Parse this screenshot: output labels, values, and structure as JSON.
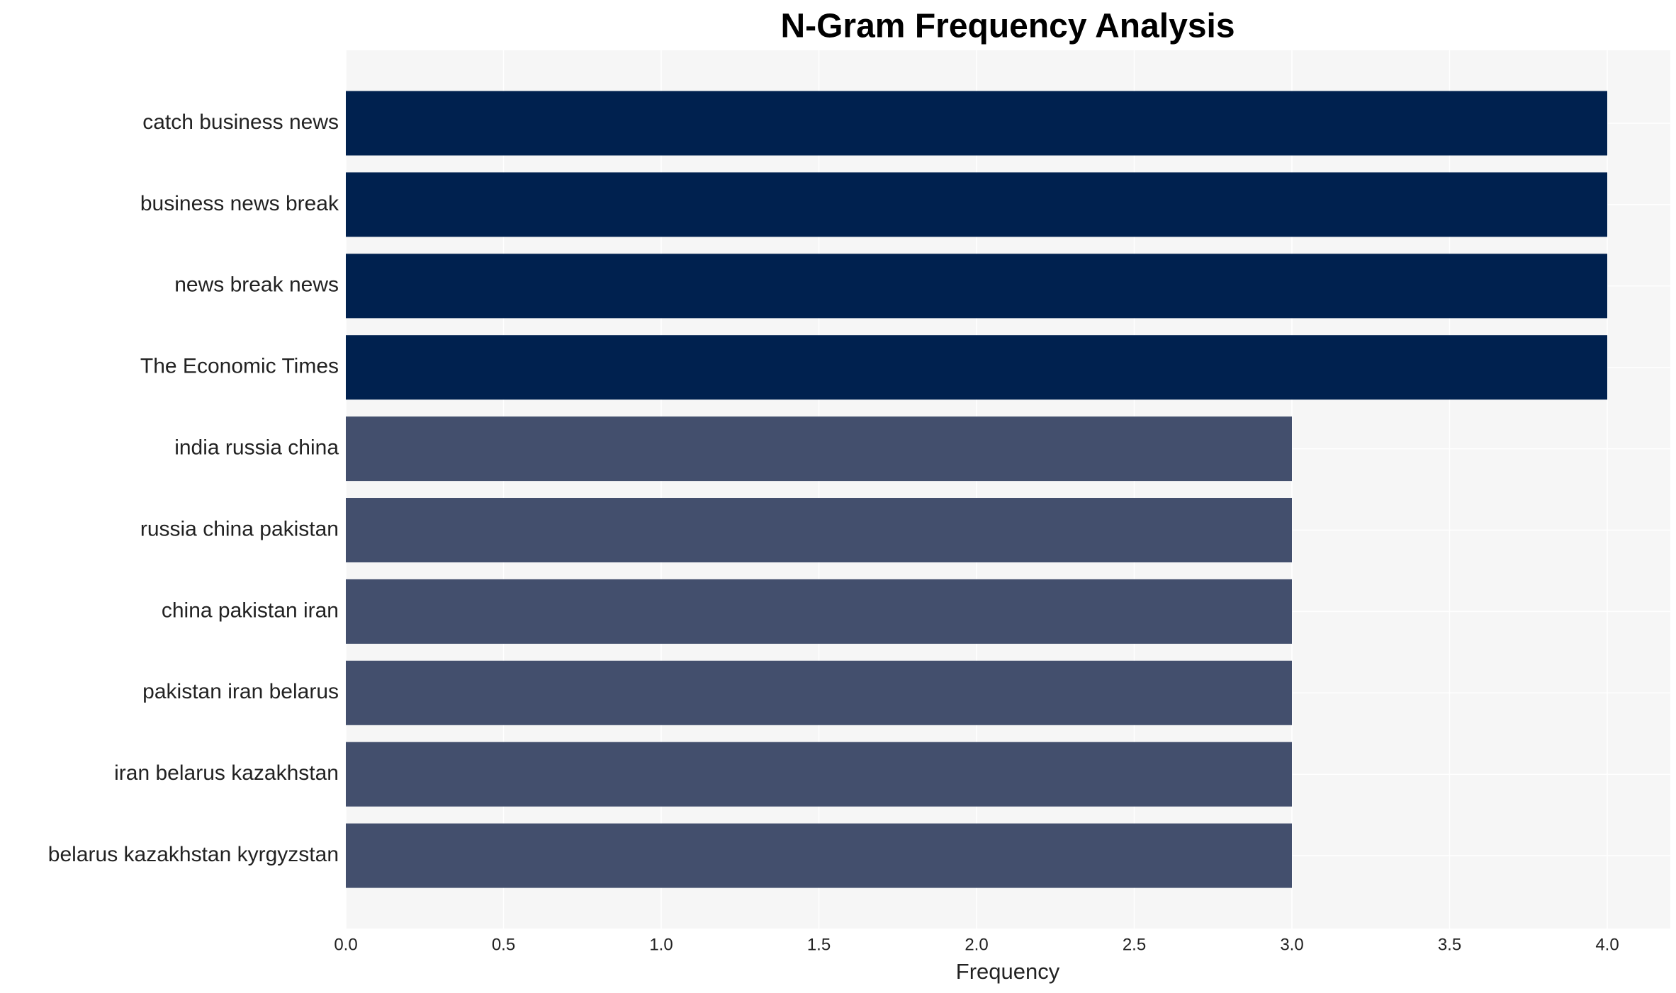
{
  "chart_data": {
    "type": "barh",
    "title": "N-Gram Frequency Analysis",
    "x_label": "Frequency",
    "categories": [
      "catch business news",
      "business news break",
      "news break news",
      "The Economic Times",
      "india russia china",
      "russia china pakistan",
      "china pakistan iran",
      "pakistan iran belarus",
      "iran belarus kazakhstan",
      "belarus kazakhstan kyrgyzstan"
    ],
    "values": [
      4,
      4,
      4,
      4,
      3,
      3,
      3,
      3,
      3,
      3
    ],
    "colors": [
      "#00214f",
      "#00214f",
      "#00214f",
      "#00214f",
      "#434f6d",
      "#434f6d",
      "#434f6d",
      "#434f6d",
      "#434f6d",
      "#434f6d"
    ],
    "xlim": [
      0,
      4.2
    ],
    "xticks": [
      {
        "value": 0,
        "label": "0.0"
      },
      {
        "value": 0.5,
        "label": "0.5"
      },
      {
        "value": 1,
        "label": "1.0"
      },
      {
        "value": 1.5,
        "label": "1.5"
      },
      {
        "value": 2,
        "label": "2.0"
      },
      {
        "value": 2.5,
        "label": "2.5"
      },
      {
        "value": 3,
        "label": "3.0"
      },
      {
        "value": 3.5,
        "label": "3.5"
      },
      {
        "value": 4,
        "label": "4.0"
      }
    ],
    "grid": true
  }
}
